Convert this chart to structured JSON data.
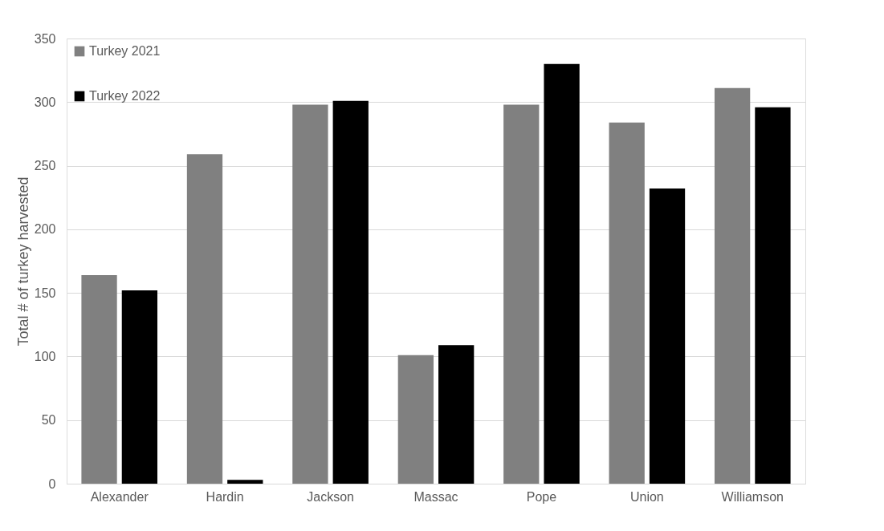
{
  "chart_data": {
    "type": "bar",
    "ylabel": "Total # of turkey harvested",
    "categories": [
      "Alexander",
      "Hardin",
      "Jackson",
      "Massac",
      "Pope",
      "Union",
      "Williamson"
    ],
    "series": [
      {
        "name": "Turkey 2021",
        "color": "#808080",
        "values": [
          164,
          259,
          298,
          101,
          298,
          284,
          311
        ]
      },
      {
        "name": "Turkey 2022",
        "color": "#000000",
        "values": [
          152,
          3,
          301,
          109,
          330,
          232,
          296
        ]
      }
    ],
    "ylim": [
      0,
      350
    ],
    "yticks": [
      0,
      50,
      100,
      150,
      200,
      250,
      300,
      350
    ],
    "grid": "y",
    "legend": "top left"
  }
}
